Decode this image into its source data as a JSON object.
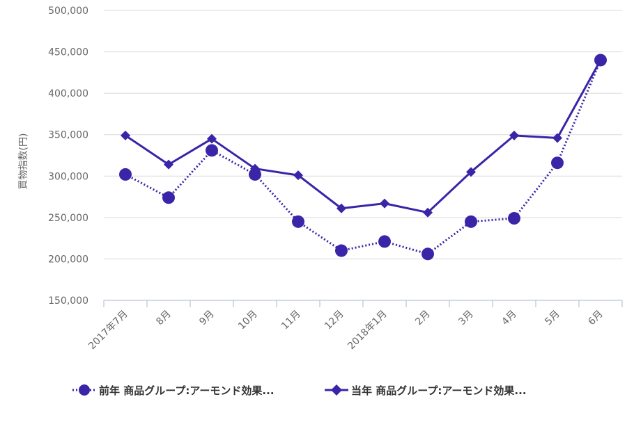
{
  "chart_data": {
    "type": "line",
    "ylabel": "買物指数(円)",
    "ylim": [
      150000,
      500000
    ],
    "yticks": [
      "150,000",
      "200,000",
      "250,000",
      "300,000",
      "350,000",
      "400,000",
      "450,000",
      "500,000"
    ],
    "categories": [
      "2017年7月",
      "8月",
      "9月",
      "10月",
      "11月",
      "12月",
      "2018年1月",
      "2月",
      "3月",
      "4月",
      "5月",
      "6月"
    ],
    "grid": true,
    "legend_position": "bottom",
    "colors": {
      "series": "#3a24a8",
      "grid": "#d9d9d9",
      "axis": "#aab5d1"
    },
    "series": [
      {
        "name": "前年 商品グループ:アーモンド効果...",
        "marker": "circle",
        "line_style": "dotted",
        "values": [
          302000,
          274000,
          331000,
          302000,
          245000,
          210000,
          221000,
          206000,
          245000,
          249000,
          316000,
          440000
        ]
      },
      {
        "name": "当年 商品グループ:アーモンド効果...",
        "marker": "diamond",
        "line_style": "solid",
        "values": [
          349000,
          314000,
          345000,
          309000,
          301000,
          261000,
          267000,
          256000,
          305000,
          349000,
          346000,
          440000
        ]
      }
    ]
  }
}
